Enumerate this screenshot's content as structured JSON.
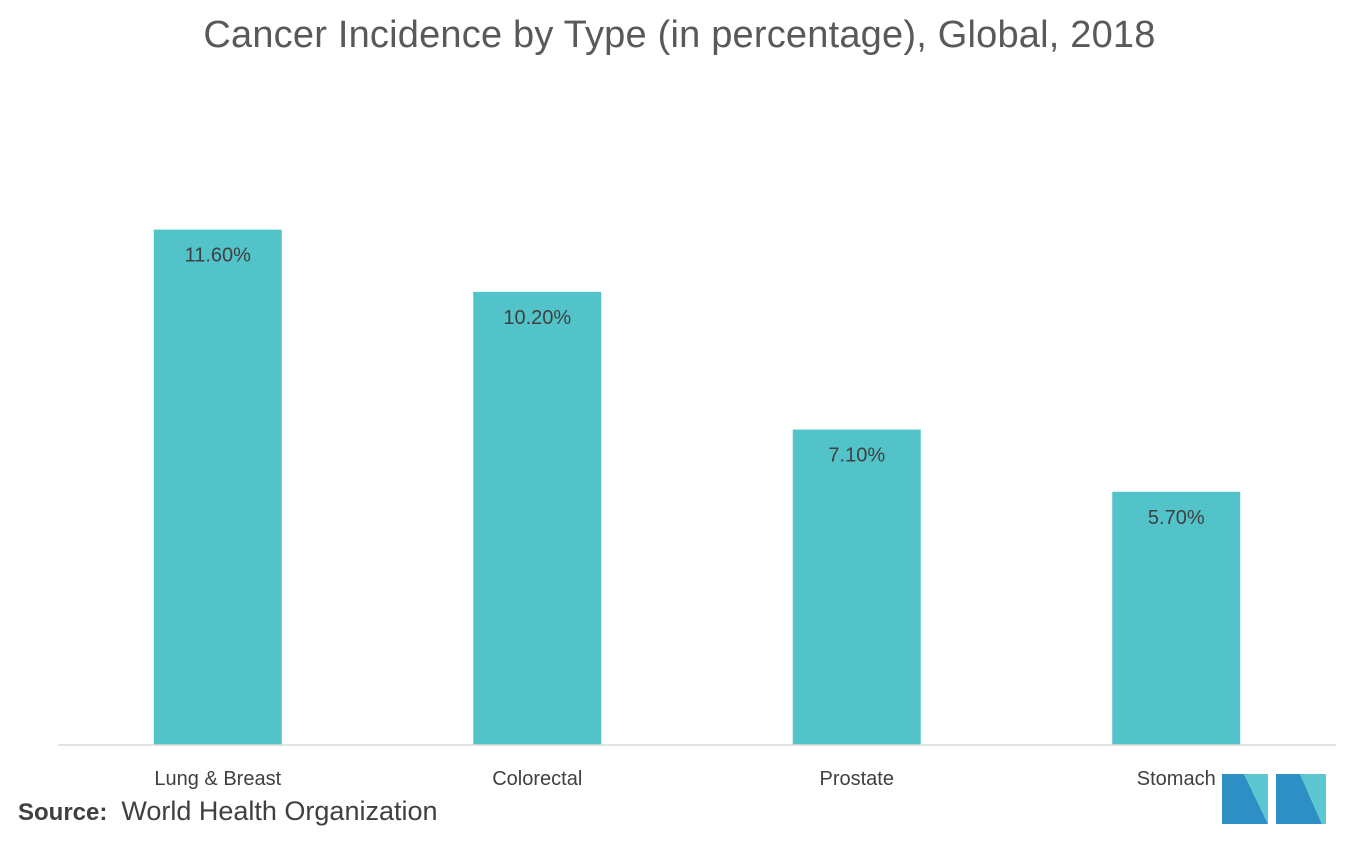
{
  "chart_data": {
    "type": "bar",
    "title": "Cancer Incidence by Type (in percentage), Global, 2018",
    "categories": [
      "Lung & Breast",
      "Colorectal",
      "Prostate",
      "Stomach"
    ],
    "values": [
      11.6,
      10.2,
      7.1,
      5.7
    ],
    "data_labels": [
      "11.60%",
      "10.20%",
      "7.10%",
      "5.70%"
    ],
    "ylim": [
      0,
      14
    ],
    "grid": false,
    "legend": "none",
    "bar_color": "#52C4C9"
  },
  "source": {
    "label": "Source:",
    "text": "World Health Organization"
  },
  "logo": {
    "icon": "mordor-intelligence-logo-icon",
    "colors": [
      "#2E8FC4",
      "#5BC8D1"
    ]
  }
}
